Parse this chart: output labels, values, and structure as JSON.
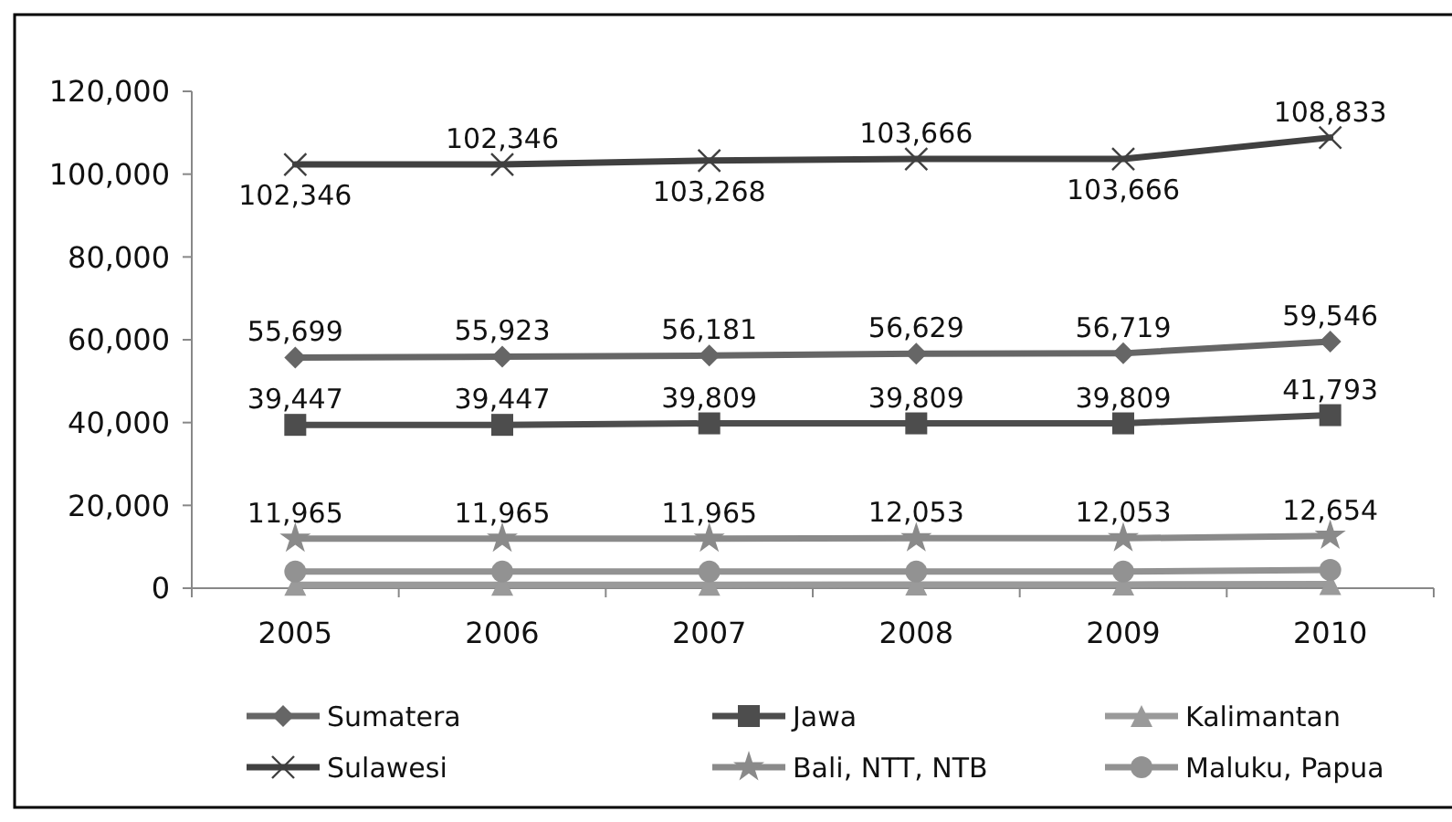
{
  "chart_data": {
    "type": "line",
    "categories": [
      "2005",
      "2006",
      "2007",
      "2008",
      "2009",
      "2010"
    ],
    "ylim": [
      0,
      120000
    ],
    "yticks": [
      {
        "value": 0,
        "label": "0"
      },
      {
        "value": 20000,
        "label": "20,000"
      },
      {
        "value": 40000,
        "label": "40,000"
      },
      {
        "value": 60000,
        "label": "60,000"
      },
      {
        "value": 80000,
        "label": "80,000"
      },
      {
        "value": 100000,
        "label": "100,000"
      },
      {
        "value": 120000,
        "label": "120,000"
      }
    ],
    "grid": false,
    "legend": "bottom",
    "series": [
      {
        "name": "Sumatera",
        "color": "#666666",
        "marker": "diamond",
        "values": [
          55699,
          55923,
          56181,
          56629,
          56719,
          59546
        ],
        "value_labels": [
          "55,699",
          "55,923",
          "56,181",
          "56,629",
          "56,719",
          "59,546"
        ]
      },
      {
        "name": "Jawa",
        "color": "#4d4d4d",
        "marker": "square",
        "values": [
          39447,
          39447,
          39809,
          39809,
          39809,
          41793
        ],
        "value_labels": [
          "39,447",
          "39,447",
          "39,809",
          "39,809",
          "39,809",
          "41,793"
        ]
      },
      {
        "name": "Kalimantan",
        "color": "#9a9a9a",
        "marker": "triangle",
        "values": [
          800,
          800,
          800,
          900,
          900,
          1000
        ]
      },
      {
        "name": "Sulawesi",
        "color": "#404040",
        "marker": "cross",
        "values": [
          102346,
          102346,
          103268,
          103666,
          103666,
          108833
        ],
        "value_labels": [
          "102,346",
          "102,346",
          "103,268",
          "103,666",
          "103,666",
          "108,833"
        ]
      },
      {
        "name": "Bali, NTT, NTB",
        "color": "#8a8a8a",
        "marker": "star",
        "values": [
          11965,
          11965,
          11965,
          12053,
          12053,
          12654
        ],
        "value_labels": [
          "11,965",
          "11,965",
          "11,965",
          "12,053",
          "12,053",
          "12,654"
        ]
      },
      {
        "name": "Maluku, Papua",
        "color": "#929292",
        "marker": "circle",
        "values": [
          4000,
          4000,
          4000,
          4000,
          4000,
          4400
        ]
      }
    ]
  }
}
